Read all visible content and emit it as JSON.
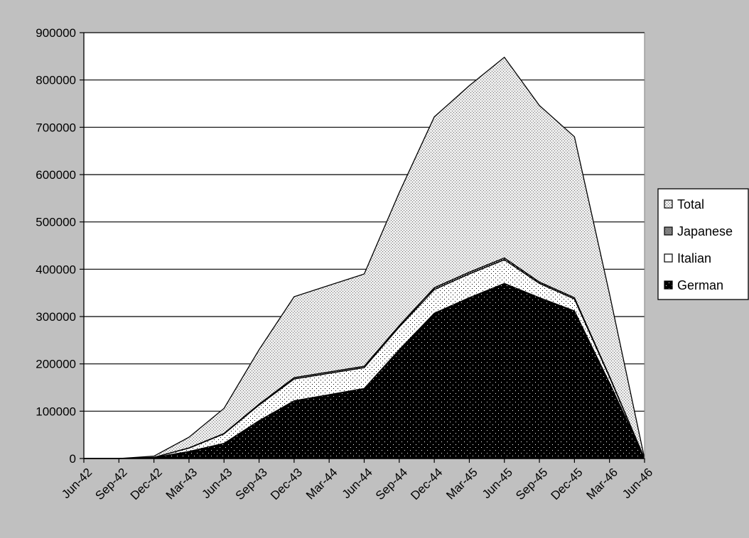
{
  "chart_data": {
    "type": "area",
    "stacked": true,
    "categories": [
      "Jun-42",
      "Sep-42",
      "Dec-42",
      "Mar-43",
      "Jun-43",
      "Sep-43",
      "Dec-43",
      "Mar-44",
      "Jun-44",
      "Sep-44",
      "Dec-44",
      "Mar-45",
      "Jun-45",
      "Sep-45",
      "Dec-45",
      "Mar-46",
      "Jun-46"
    ],
    "ylim": [
      0,
      900000
    ],
    "yticks": [
      "0",
      "100000",
      "200000",
      "300000",
      "400000",
      "500000",
      "600000",
      "700000",
      "800000",
      "900000"
    ],
    "grid": true,
    "legend_position": "right",
    "series": [
      {
        "name": "German",
        "color": "#000000",
        "pattern": "white-dots-on-black",
        "values": [
          0,
          0,
          2000,
          15000,
          32000,
          80000,
          122000,
          135000,
          148000,
          230000,
          307000,
          340000,
          370000,
          340000,
          312000,
          160000,
          0
        ]
      },
      {
        "name": "Italian",
        "color": "#ffffff",
        "pattern": "black-dots-on-white",
        "values": [
          0,
          0,
          500,
          7000,
          20000,
          33000,
          46000,
          45000,
          44000,
          48000,
          50000,
          50000,
          50000,
          30000,
          25000,
          12000,
          0
        ]
      },
      {
        "name": "Japanese",
        "color": "#404040",
        "pattern": "checker",
        "values": [
          0,
          0,
          0,
          500,
          1000,
          2000,
          3000,
          3000,
          3000,
          3000,
          4000,
          4000,
          4000,
          3000,
          3000,
          2000,
          0
        ]
      },
      {
        "name": "Total",
        "color": "#d8d8d8",
        "pattern": "light-dots",
        "values": [
          0,
          0,
          2500,
          22500,
          53000,
          115000,
          171000,
          183000,
          195000,
          281000,
          361000,
          394000,
          424000,
          373000,
          340000,
          174000,
          0
        ]
      }
    ]
  },
  "legend": {
    "items": [
      "Total",
      "Japanese",
      "Italian",
      "German"
    ]
  }
}
